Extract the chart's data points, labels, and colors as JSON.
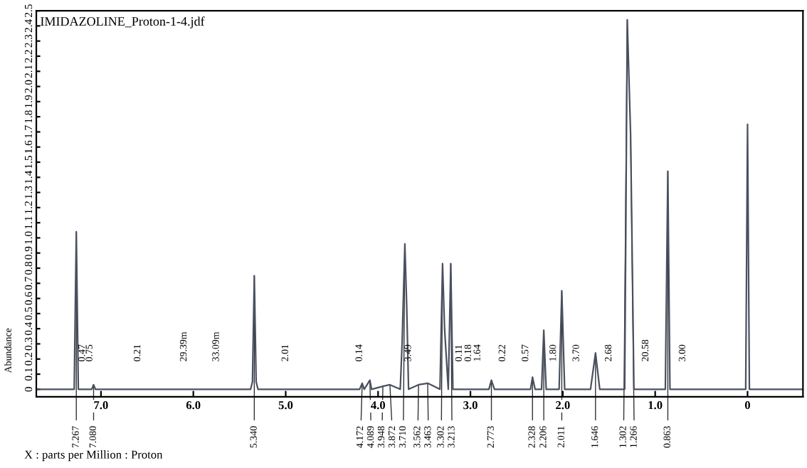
{
  "chart_data": {
    "type": "line",
    "title": "IMIDAZOLINE_Proton-1-4.jdf",
    "xlabel": "X : parts per Million : Proton",
    "ylabel": "Abundance",
    "xlim": [
      7.7,
      -0.6
    ],
    "xticks": [
      {
        "value": 7,
        "label": "7.0"
      },
      {
        "value": 6,
        "label": "6.0"
      },
      {
        "value": 5,
        "label": "5.0"
      },
      {
        "value": 4,
        "label": "4.0"
      },
      {
        "value": 3,
        "label": "3.0"
      },
      {
        "value": 2,
        "label": "2.0"
      },
      {
        "value": 1,
        "label": "1.0"
      },
      0
    ],
    "ylim": [
      -0.05,
      2.5
    ],
    "yticks": [
      0,
      0.1,
      0.2,
      0.3,
      0.4,
      0.5,
      0.6,
      0.7,
      0.8,
      0.9,
      {
        "value": 1,
        "label": "1.0"
      },
      1.1,
      1.2,
      1.3,
      1.4,
      1.5,
      1.6,
      1.7,
      1.8,
      1.9,
      {
        "value": 2,
        "label": "2.0"
      },
      2.1,
      2.2,
      2.3,
      2.4,
      2.5
    ],
    "grid": false,
    "legend": false,
    "marker": "none",
    "line_style": "solid",
    "series": [
      {
        "color": "#4a5060",
        "x": [
          7.7,
          7.29,
          7.267,
          7.245,
          7.1,
          7.08,
          7.06,
          5.38,
          5.36,
          5.34,
          5.32,
          5.3,
          4.2,
          4.172,
          4.15,
          4.089,
          4.07,
          3.948,
          3.872,
          3.76,
          3.74,
          3.71,
          3.69,
          3.67,
          3.562,
          3.463,
          3.33,
          3.302,
          3.28,
          3.24,
          3.213,
          3.19,
          2.8,
          2.773,
          2.74,
          2.35,
          2.328,
          2.3,
          2.23,
          2.206,
          2.18,
          2.04,
          2.011,
          1.98,
          1.7,
          1.646,
          1.6,
          1.33,
          1.302,
          1.266,
          1.23,
          0.89,
          0.863,
          0.84,
          0.02,
          0.0,
          -0.02,
          -0.6
        ],
        "values": [
          0,
          0,
          1.04,
          0,
          0,
          0.03,
          0,
          0,
          0.05,
          0.75,
          0.05,
          0,
          0,
          0.04,
          0,
          0.06,
          0,
          0.02,
          0.03,
          0,
          0.3,
          0.96,
          0.55,
          0,
          0.03,
          0.04,
          0,
          0.83,
          0.4,
          0,
          0.83,
          0,
          0,
          0.06,
          0,
          0,
          0.08,
          0,
          0,
          0.39,
          0,
          0,
          0.65,
          0,
          0,
          0.24,
          0,
          0,
          2.44,
          1.68,
          0,
          0,
          1.44,
          0,
          0,
          1.75,
          0,
          0
        ]
      }
    ],
    "annotations": [
      {
        "text": "0.47",
        "x": 7.2,
        "y": 0
      },
      {
        "text": "0.75",
        "x": 7.12,
        "y": 0
      },
      {
        "text": "0.21",
        "x": 6.6,
        "y": 0
      },
      {
        "text": "29.39m",
        "x": 6.1,
        "y": 0
      },
      {
        "text": "33.09m",
        "x": 5.75,
        "y": 0
      },
      {
        "text": "2.01",
        "x": 5.0,
        "y": 0
      },
      {
        "text": "0.14",
        "x": 4.2,
        "y": 0
      },
      {
        "text": "3.49",
        "x": 3.67,
        "y": 0
      },
      {
        "text": "0.11",
        "x": 3.12,
        "y": 0
      },
      {
        "text": "0.18",
        "x": 3.02,
        "y": 0
      },
      {
        "text": "1.64",
        "x": 2.92,
        "y": 0
      },
      {
        "text": "0.22",
        "x": 2.65,
        "y": 0
      },
      {
        "text": "0.57",
        "x": 2.4,
        "y": 0
      },
      {
        "text": "1.80",
        "x": 2.1,
        "y": 0
      },
      {
        "text": "3.70",
        "x": 1.85,
        "y": 0
      },
      {
        "text": "2.68",
        "x": 1.5,
        "y": 0
      },
      {
        "text": "20.58",
        "x": 1.1,
        "y": 0
      },
      {
        "text": "3.00",
        "x": 0.7,
        "y": 0
      },
      {
        "text": "7.267",
        "x": 7.267,
        "y": 1.04
      },
      {
        "text": "7.080",
        "x": 7.08,
        "y": 0.03
      },
      {
        "text": "5.340",
        "x": 5.34,
        "y": 0.75
      },
      {
        "text": "4.172",
        "x": 4.172,
        "y": 0.04
      },
      {
        "text": "4.089",
        "x": 4.089,
        "y": 0.06
      },
      {
        "text": "3.948",
        "x": 3.948,
        "y": 0.02
      },
      {
        "text": "3.872",
        "x": 3.872,
        "y": 0.03
      },
      {
        "text": "3.710",
        "x": 3.71,
        "y": 0.96
      },
      {
        "text": "3.562",
        "x": 3.562,
        "y": 0.03
      },
      {
        "text": "3.463",
        "x": 3.463,
        "y": 0.04
      },
      {
        "text": "3.302",
        "x": 3.302,
        "y": 0.83
      },
      {
        "text": "3.213",
        "x": 3.213,
        "y": 0.83
      },
      {
        "text": "2.773",
        "x": 2.773,
        "y": 0.06
      },
      {
        "text": "2.328",
        "x": 2.328,
        "y": 0.08
      },
      {
        "text": "2.206",
        "x": 2.206,
        "y": 0.39
      },
      {
        "text": "2.011",
        "x": 2.011,
        "y": 0.65
      },
      {
        "text": "1.646",
        "x": 1.646,
        "y": 0.24
      },
      {
        "text": "1.302",
        "x": 1.302,
        "y": 2.44
      },
      {
        "text": "1.266",
        "x": 1.266,
        "y": 1.68
      },
      {
        "text": "0.863",
        "x": 0.863,
        "y": 1.44
      }
    ]
  }
}
